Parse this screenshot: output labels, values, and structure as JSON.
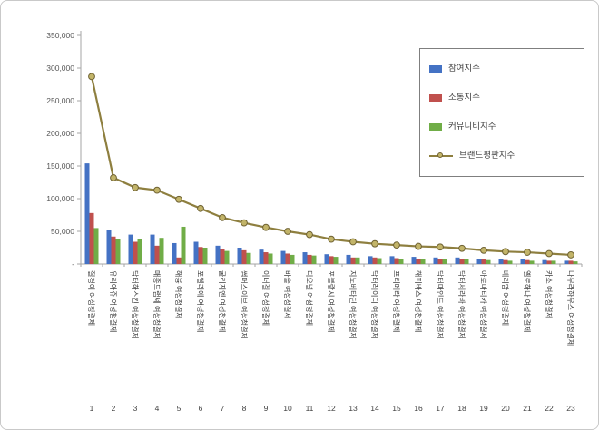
{
  "chart_data": {
    "type": "bar",
    "variant": "grouped bars with line overlay",
    "title": "",
    "categories": [
      "질경이 여성청결제",
      "유리아쥬 여성청결제",
      "닥터하스킨 여성청결제",
      "매종드랩셰 여성청결제",
      "해융 여성청결제",
      "포엘리에 여성청결제",
      "굴리지엔 여성청결제",
      "썸머스이브 여성청결제",
      "이너겔 여성청결제",
      "바솔 여성청결제",
      "디오널 여성청결제",
      "포블랑시 여성청결제",
      "지노베타딘 여성청결제",
      "닥터레이디 여성청결제",
      "프리메라 여성청결제",
      "해피바스 여성청결제",
      "닥터마인드 여성청결제",
      "닥터세라바 여성청결제",
      "아로마티카 여성청결제",
      "베리맘 여성청결제",
      "옐로하나 여성청결제",
      "카소 여성청결제",
      "나무라하우스 여성청결제"
    ],
    "ranks": [
      "1",
      "2",
      "3",
      "4",
      "5",
      "6",
      "7",
      "8",
      "9",
      "10",
      "11",
      "12",
      "13",
      "14",
      "15",
      "16",
      "17",
      "18",
      "19",
      "20",
      "21",
      "22",
      "23"
    ],
    "series": [
      {
        "name": "참여지수",
        "type": "bar",
        "color": "#4472C4",
        "values": [
          154000,
          52000,
          45000,
          45000,
          32000,
          34000,
          28000,
          25000,
          22000,
          20000,
          18000,
          15000,
          14000,
          12000,
          12000,
          11000,
          10000,
          10000,
          8000,
          8000,
          7000,
          6000,
          5000
        ]
      },
      {
        "name": "소통지수",
        "type": "bar",
        "color": "#C0504D",
        "values": [
          78000,
          42000,
          34000,
          28000,
          10000,
          26000,
          23000,
          21000,
          18000,
          16000,
          14000,
          12000,
          10000,
          10000,
          9000,
          8000,
          8000,
          7000,
          7000,
          6000,
          6000,
          5000,
          5000
        ]
      },
      {
        "name": "커뮤니티지수",
        "type": "bar",
        "color": "#70AD47",
        "values": [
          55000,
          38000,
          38000,
          40000,
          57000,
          25000,
          20000,
          17000,
          16000,
          14000,
          13000,
          11000,
          10000,
          9000,
          8000,
          8000,
          8000,
          7000,
          6000,
          5000,
          5000,
          5000,
          4000
        ]
      },
      {
        "name": "브랜드평판지수",
        "type": "line",
        "color": "#8E7F3F",
        "marker_fill": "#C2B469",
        "marker_stroke": "#6F6233",
        "values": [
          287000,
          132000,
          117000,
          113000,
          99000,
          85000,
          71000,
          63000,
          56000,
          50000,
          45000,
          38000,
          34000,
          31000,
          29000,
          27000,
          26000,
          24000,
          21000,
          19000,
          18000,
          16000,
          14000
        ]
      }
    ],
    "y_axis": {
      "min": 0,
      "max": 350000,
      "tick_interval": 50000,
      "tick_labels_bottom_to_top": [
        "-",
        "50,000",
        "100,000",
        "150,000",
        "200,000",
        "250,000",
        "300,000",
        "350,000"
      ]
    },
    "x_axis": {
      "label_rotation_deg": 90
    },
    "legend": {
      "position": "top-right"
    },
    "grid": false,
    "background": "#FFFFFF",
    "axis_color": "#A6A6A6"
  }
}
